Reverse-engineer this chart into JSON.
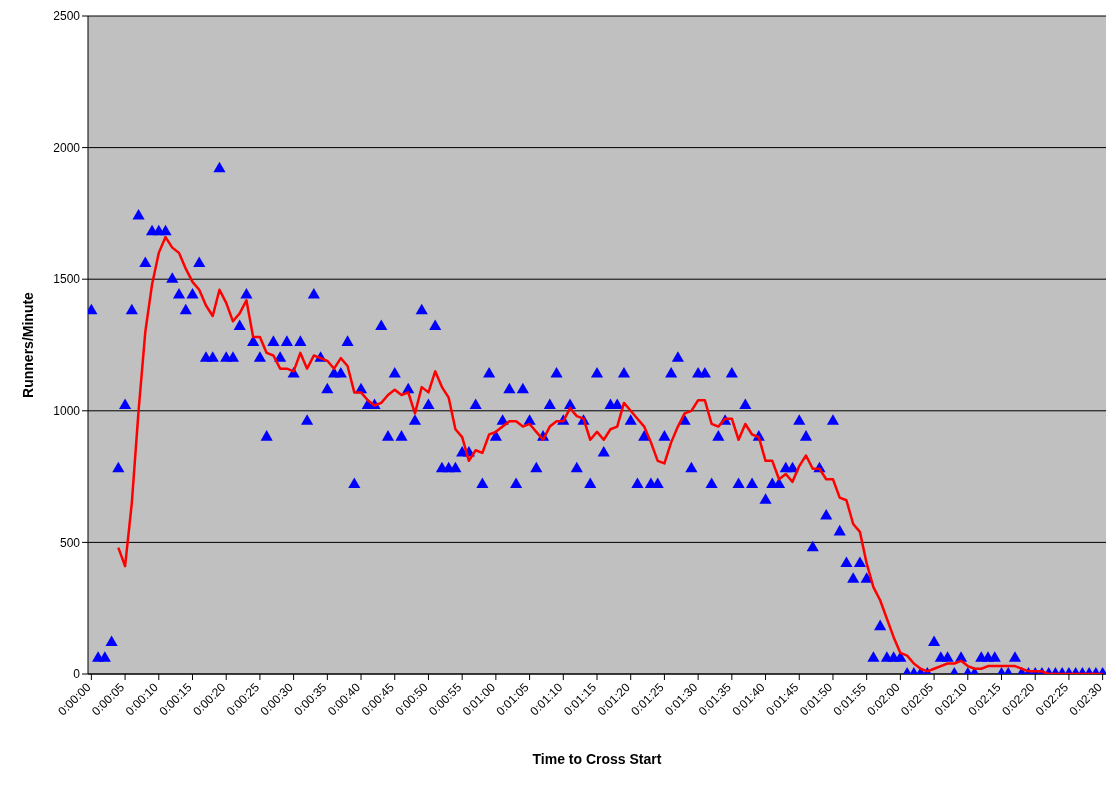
{
  "chart_data": {
    "type": "scatter",
    "xlabel": "Time to Cross Start",
    "ylabel": "Runners/Minute",
    "xlim": [
      -0.5,
      150.5
    ],
    "ylim": [
      0,
      2500
    ],
    "yticks": [
      0,
      500,
      1000,
      1500,
      2000,
      2500
    ],
    "xticks": [
      {
        "value": 0,
        "label": "0:00:00"
      },
      {
        "value": 5,
        "label": "0:00:05"
      },
      {
        "value": 10,
        "label": "0:00:10"
      },
      {
        "value": 15,
        "label": "0:00:15"
      },
      {
        "value": 20,
        "label": "0:00:20"
      },
      {
        "value": 25,
        "label": "0:00:25"
      },
      {
        "value": 30,
        "label": "0:00:30"
      },
      {
        "value": 35,
        "label": "0:00:35"
      },
      {
        "value": 40,
        "label": "0:00:40"
      },
      {
        "value": 45,
        "label": "0:00:45"
      },
      {
        "value": 50,
        "label": "0:00:50"
      },
      {
        "value": 55,
        "label": "0:00:55"
      },
      {
        "value": 60,
        "label": "0:01:00"
      },
      {
        "value": 65,
        "label": "0:01:05"
      },
      {
        "value": 70,
        "label": "0:01:10"
      },
      {
        "value": 75,
        "label": "0:01:15"
      },
      {
        "value": 80,
        "label": "0:01:20"
      },
      {
        "value": 85,
        "label": "0:01:25"
      },
      {
        "value": 90,
        "label": "0:01:30"
      },
      {
        "value": 95,
        "label": "0:01:35"
      },
      {
        "value": 100,
        "label": "0:01:40"
      },
      {
        "value": 105,
        "label": "0:01:45"
      },
      {
        "value": 110,
        "label": "0:01:50"
      },
      {
        "value": 115,
        "label": "0:01:55"
      },
      {
        "value": 120,
        "label": "0:02:00"
      },
      {
        "value": 125,
        "label": "0:02:05"
      },
      {
        "value": 130,
        "label": "0:02:10"
      },
      {
        "value": 135,
        "label": "0:02:15"
      },
      {
        "value": 140,
        "label": "0:02:20"
      },
      {
        "value": 145,
        "label": "0:02:25"
      },
      {
        "value": 150,
        "label": "0:02:30"
      }
    ],
    "grid": "y",
    "legend": false,
    "series": [
      {
        "color": "#0000ff",
        "marker": "triangle",
        "x": [
          0,
          1,
          2,
          3,
          4,
          5,
          6,
          7,
          8,
          9,
          10,
          11,
          12,
          13,
          14,
          15,
          16,
          17,
          18,
          19,
          20,
          21,
          22,
          23,
          24,
          25,
          26,
          27,
          28,
          29,
          30,
          31,
          32,
          33,
          34,
          35,
          36,
          37,
          38,
          39,
          40,
          41,
          42,
          43,
          44,
          45,
          46,
          47,
          48,
          49,
          50,
          51,
          52,
          53,
          54,
          55,
          56,
          57,
          58,
          59,
          60,
          61,
          62,
          63,
          64,
          65,
          66,
          67,
          68,
          69,
          70,
          71,
          72,
          73,
          74,
          75,
          76,
          77,
          78,
          79,
          80,
          81,
          82,
          83,
          84,
          85,
          86,
          87,
          88,
          89,
          90,
          91,
          92,
          93,
          94,
          95,
          96,
          97,
          98,
          99,
          100,
          101,
          102,
          103,
          104,
          105,
          106,
          107,
          108,
          109,
          110,
          111,
          112,
          113,
          114,
          115,
          116,
          117,
          118,
          119,
          120,
          121,
          122,
          123,
          124,
          125,
          126,
          127,
          128,
          129,
          130,
          131,
          132,
          133,
          134,
          135,
          136,
          137,
          138,
          139,
          140,
          141,
          142,
          143,
          144,
          145,
          146,
          147,
          148,
          149,
          150
        ],
        "values": [
          1380,
          60,
          60,
          120,
          780,
          1020,
          1380,
          1740,
          1560,
          1680,
          1680,
          1680,
          1500,
          1440,
          1380,
          1440,
          1560,
          1200,
          1200,
          1920,
          1200,
          1200,
          1320,
          1440,
          1260,
          1200,
          900,
          1260,
          1200,
          1260,
          1140,
          1260,
          960,
          1440,
          1200,
          1080,
          1140,
          1140,
          1260,
          720,
          1080,
          1020,
          1020,
          1320,
          900,
          1140,
          900,
          1080,
          960,
          1380,
          1020,
          1320,
          780,
          780,
          780,
          840,
          840,
          1020,
          720,
          1140,
          900,
          960,
          1080,
          720,
          1080,
          960,
          780,
          900,
          1020,
          1140,
          960,
          1020,
          780,
          960,
          720,
          1140,
          840,
          1020,
          1020,
          1140,
          960,
          720,
          900,
          720,
          720,
          900,
          1140,
          1200,
          960,
          780,
          1140,
          1140,
          720,
          900,
          960,
          1140,
          720,
          1020,
          720,
          900,
          660,
          720,
          720,
          780,
          780,
          960,
          900,
          480,
          780,
          600,
          960,
          540,
          420,
          360,
          420,
          360,
          60,
          180,
          60,
          60,
          60,
          0,
          0,
          0,
          0,
          120,
          60,
          60,
          0,
          60,
          0,
          0,
          60,
          60,
          60,
          0,
          0,
          60,
          0,
          0,
          0,
          0,
          0,
          0,
          0,
          0,
          0,
          0,
          0,
          0,
          0
        ]
      },
      {
        "type": "line",
        "color": "#ff0000",
        "marker": "none",
        "line_style": "solid",
        "x": [
          4,
          5,
          6,
          7,
          8,
          9,
          10,
          11,
          12,
          13,
          14,
          15,
          16,
          17,
          18,
          19,
          20,
          21,
          22,
          23,
          24,
          25,
          26,
          27,
          28,
          29,
          30,
          31,
          32,
          33,
          34,
          35,
          36,
          37,
          38,
          39,
          40,
          41,
          42,
          43,
          44,
          45,
          46,
          47,
          48,
          49,
          50,
          51,
          52,
          53,
          54,
          55,
          56,
          57,
          58,
          59,
          60,
          61,
          62,
          63,
          64,
          65,
          66,
          67,
          68,
          69,
          70,
          71,
          72,
          73,
          74,
          75,
          76,
          77,
          78,
          79,
          80,
          81,
          82,
          83,
          84,
          85,
          86,
          87,
          88,
          89,
          90,
          91,
          92,
          93,
          94,
          95,
          96,
          97,
          98,
          99,
          100,
          101,
          102,
          103,
          104,
          105,
          106,
          107,
          108,
          109,
          110,
          111,
          112,
          113,
          114,
          115,
          116,
          117,
          118,
          119,
          120,
          121,
          122,
          123,
          124,
          125,
          126,
          127,
          128,
          129,
          130,
          131,
          132,
          133,
          134,
          135,
          136,
          137,
          138,
          139,
          140,
          141,
          142,
          143,
          144,
          145,
          146,
          147,
          148,
          149,
          150
        ],
        "values": [
          480,
          410,
          650,
          1000,
          1300,
          1480,
          1600,
          1660,
          1620,
          1600,
          1540,
          1490,
          1460,
          1400,
          1360,
          1460,
          1410,
          1340,
          1370,
          1420,
          1280,
          1280,
          1220,
          1210,
          1160,
          1160,
          1150,
          1220,
          1160,
          1210,
          1200,
          1190,
          1160,
          1200,
          1170,
          1070,
          1070,
          1040,
          1020,
          1030,
          1060,
          1080,
          1060,
          1070,
          990,
          1090,
          1070,
          1150,
          1090,
          1050,
          930,
          900,
          810,
          850,
          840,
          910,
          920,
          940,
          960,
          960,
          940,
          950,
          920,
          890,
          940,
          960,
          960,
          1010,
          980,
          970,
          890,
          920,
          890,
          930,
          940,
          1030,
          1000,
          970,
          940,
          880,
          810,
          800,
          880,
          940,
          990,
          1000,
          1040,
          1040,
          950,
          940,
          970,
          970,
          890,
          950,
          910,
          900,
          810,
          810,
          740,
          760,
          730,
          790,
          830,
          780,
          780,
          740,
          740,
          670,
          660,
          570,
          540,
          420,
          330,
          280,
          210,
          140,
          80,
          70,
          40,
          20,
          10,
          20,
          30,
          40,
          40,
          50,
          30,
          20,
          20,
          30,
          30,
          30,
          30,
          30,
          20,
          10,
          10,
          10,
          0,
          0,
          0,
          0,
          0,
          0,
          0,
          0,
          0
        ]
      }
    ]
  }
}
